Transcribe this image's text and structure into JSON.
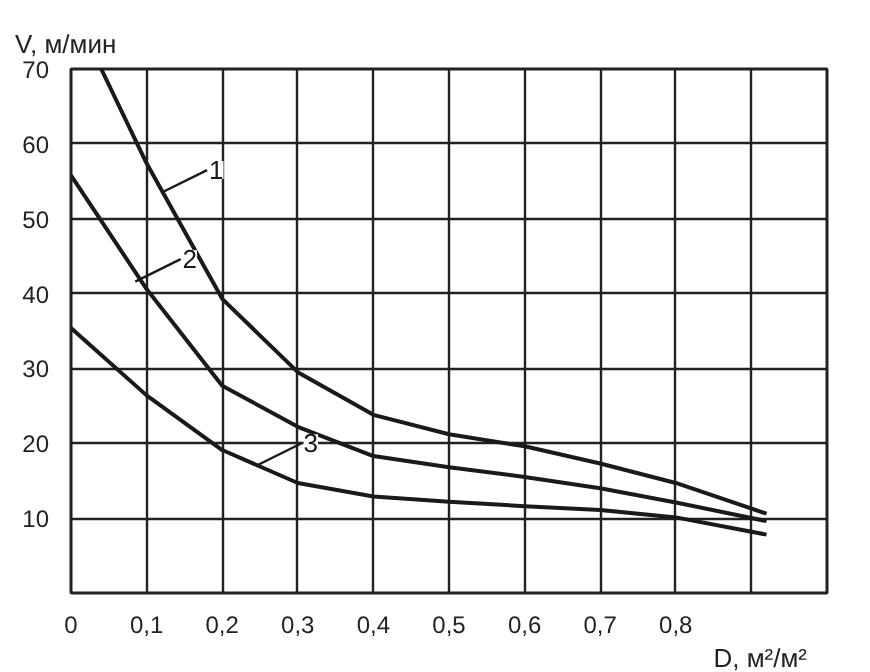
{
  "chart_data": {
    "type": "line",
    "xlabel": "D, м²/м²",
    "ylabel": "V, м/мин",
    "xlim": [
      0,
      1.0
    ],
    "ylim": [
      0,
      70
    ],
    "xticks": [
      {
        "value": 0,
        "label": "0"
      },
      {
        "value": 0.1,
        "label": "0,1"
      },
      {
        "value": 0.2,
        "label": "0,2"
      },
      {
        "value": 0.3,
        "label": "0,3"
      },
      {
        "value": 0.4,
        "label": "0,4"
      },
      {
        "value": 0.5,
        "label": "0,5"
      },
      {
        "value": 0.6,
        "label": "0,6"
      },
      {
        "value": 0.7,
        "label": "0,7"
      },
      {
        "value": 0.8,
        "label": "0,8"
      },
      {
        "value": 0.9,
        "label": null
      },
      {
        "value": 1.0,
        "label": null
      }
    ],
    "yticks": [
      {
        "value": 0,
        "label": null
      },
      10,
      20,
      30,
      40,
      50,
      60,
      70
    ],
    "grid": true,
    "marker": "none",
    "line_style": "solid",
    "series": [
      {
        "color": "#1a1a1a",
        "x": [
          0.04,
          0.1,
          0.2,
          0.3,
          0.4,
          0.5,
          0.6,
          0.7,
          0.8,
          0.92
        ],
        "values": [
          70,
          57.4,
          39.3,
          29.5,
          23.8,
          21.2,
          19.6,
          17.3,
          14.7,
          10.6
        ]
      },
      {
        "color": "#1a1a1a",
        "x": [
          0,
          0.1,
          0.2,
          0.3,
          0.4,
          0.5,
          0.6,
          0.7,
          0.8,
          0.92
        ],
        "values": [
          55.8,
          40.6,
          27.7,
          22.2,
          18.3,
          16.8,
          15.5,
          14,
          12.1,
          9.6
        ]
      },
      {
        "color": "#1a1a1a",
        "x": [
          0,
          0.1,
          0.2,
          0.3,
          0.4,
          0.5,
          0.6,
          0.7,
          0.8,
          0.92
        ],
        "values": [
          35.4,
          26.4,
          19.1,
          14.7,
          12.9,
          12.2,
          11.6,
          11.1,
          10.1,
          7.8
        ]
      }
    ],
    "annotations": [
      {
        "text": "1",
        "x": 0.12,
        "y": 53.5
      },
      {
        "text": "2",
        "x": 0.085,
        "y": 41.6
      },
      {
        "text": "3",
        "x": 0.245,
        "y": 17
      }
    ]
  }
}
